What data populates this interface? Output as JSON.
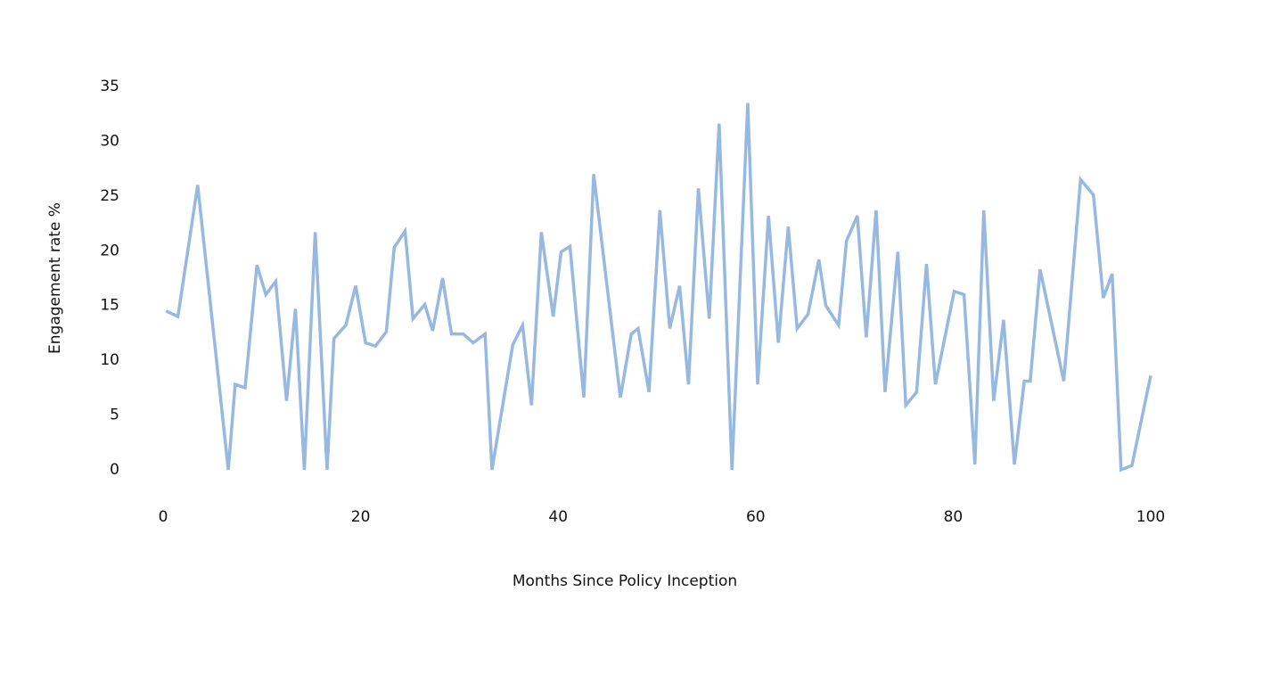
{
  "chart_data": {
    "type": "line",
    "xlabel": "Months Since Policy Inception",
    "ylabel": "Engagement rate %",
    "xlim": [
      0,
      100
    ],
    "ylim": [
      0,
      35
    ],
    "xticks": [
      0,
      20,
      40,
      60,
      80,
      100
    ],
    "yticks": [
      0,
      5,
      10,
      15,
      20,
      25,
      30,
      35
    ],
    "grid": false,
    "series": [
      {
        "color": "#97b8e0",
        "x": [
          0.3,
          1.5,
          3.5,
          6.6,
          7.3,
          8.3,
          9.5,
          10.4,
          11.4,
          12.5,
          13.4,
          14.3,
          15.4,
          16.6,
          17.3,
          18.5,
          19.5,
          20.5,
          21.5,
          22.6,
          23.4,
          24.5,
          25.3,
          26.5,
          27.3,
          28.3,
          29.2,
          30.4,
          31.4,
          32.6,
          33.3,
          35.4,
          36.4,
          37.3,
          38.3,
          39.5,
          40.3,
          41.2,
          42.6,
          43.6,
          46.3,
          47.4,
          48.1,
          49.2,
          50.3,
          51.3,
          52.3,
          53.2,
          54.2,
          55.3,
          56.3,
          57.6,
          59.2,
          60.2,
          61.3,
          62.3,
          63.3,
          64.2,
          65.3,
          66.4,
          67.1,
          68.4,
          69.2,
          70.3,
          71.2,
          72.2,
          73.1,
          74.4,
          75.2,
          76.3,
          77.3,
          78.2,
          80.1,
          81.1,
          82.2,
          83.1,
          84.1,
          85.1,
          86.2,
          87.2,
          87.8,
          88.8,
          91.2,
          92.9,
          94.2,
          95.2,
          96.1,
          97.0,
          98.1,
          100
        ],
        "values": [
          14.5,
          14.0,
          26.0,
          0,
          7.8,
          7.5,
          18.7,
          16.0,
          17.2,
          6.3,
          14.7,
          0,
          21.7,
          0,
          12.0,
          13.2,
          16.8,
          11.6,
          11.3,
          12.6,
          20.3,
          21.8,
          13.8,
          15.1,
          12.7,
          17.5,
          12.4,
          12.4,
          11.6,
          12.4,
          0,
          11.4,
          13.2,
          5.9,
          21.7,
          14.0,
          19.9,
          20.4,
          6.6,
          27.0,
          6.6,
          12.4,
          12.9,
          7.1,
          23.7,
          12.9,
          16.8,
          7.8,
          25.7,
          13.8,
          31.6,
          0,
          33.5,
          7.8,
          23.2,
          11.6,
          22.2,
          12.9,
          14.2,
          19.2,
          15.0,
          13.2,
          20.9,
          23.2,
          12.1,
          23.7,
          7.1,
          19.9,
          5.9,
          7.1,
          18.8,
          7.8,
          16.3,
          16.0,
          0.5,
          23.7,
          6.3,
          13.7,
          0.5,
          8.1,
          8.1,
          18.3,
          8.1,
          26.5,
          25.1,
          15.7,
          17.9,
          0,
          0.4,
          8.6
        ]
      }
    ]
  }
}
